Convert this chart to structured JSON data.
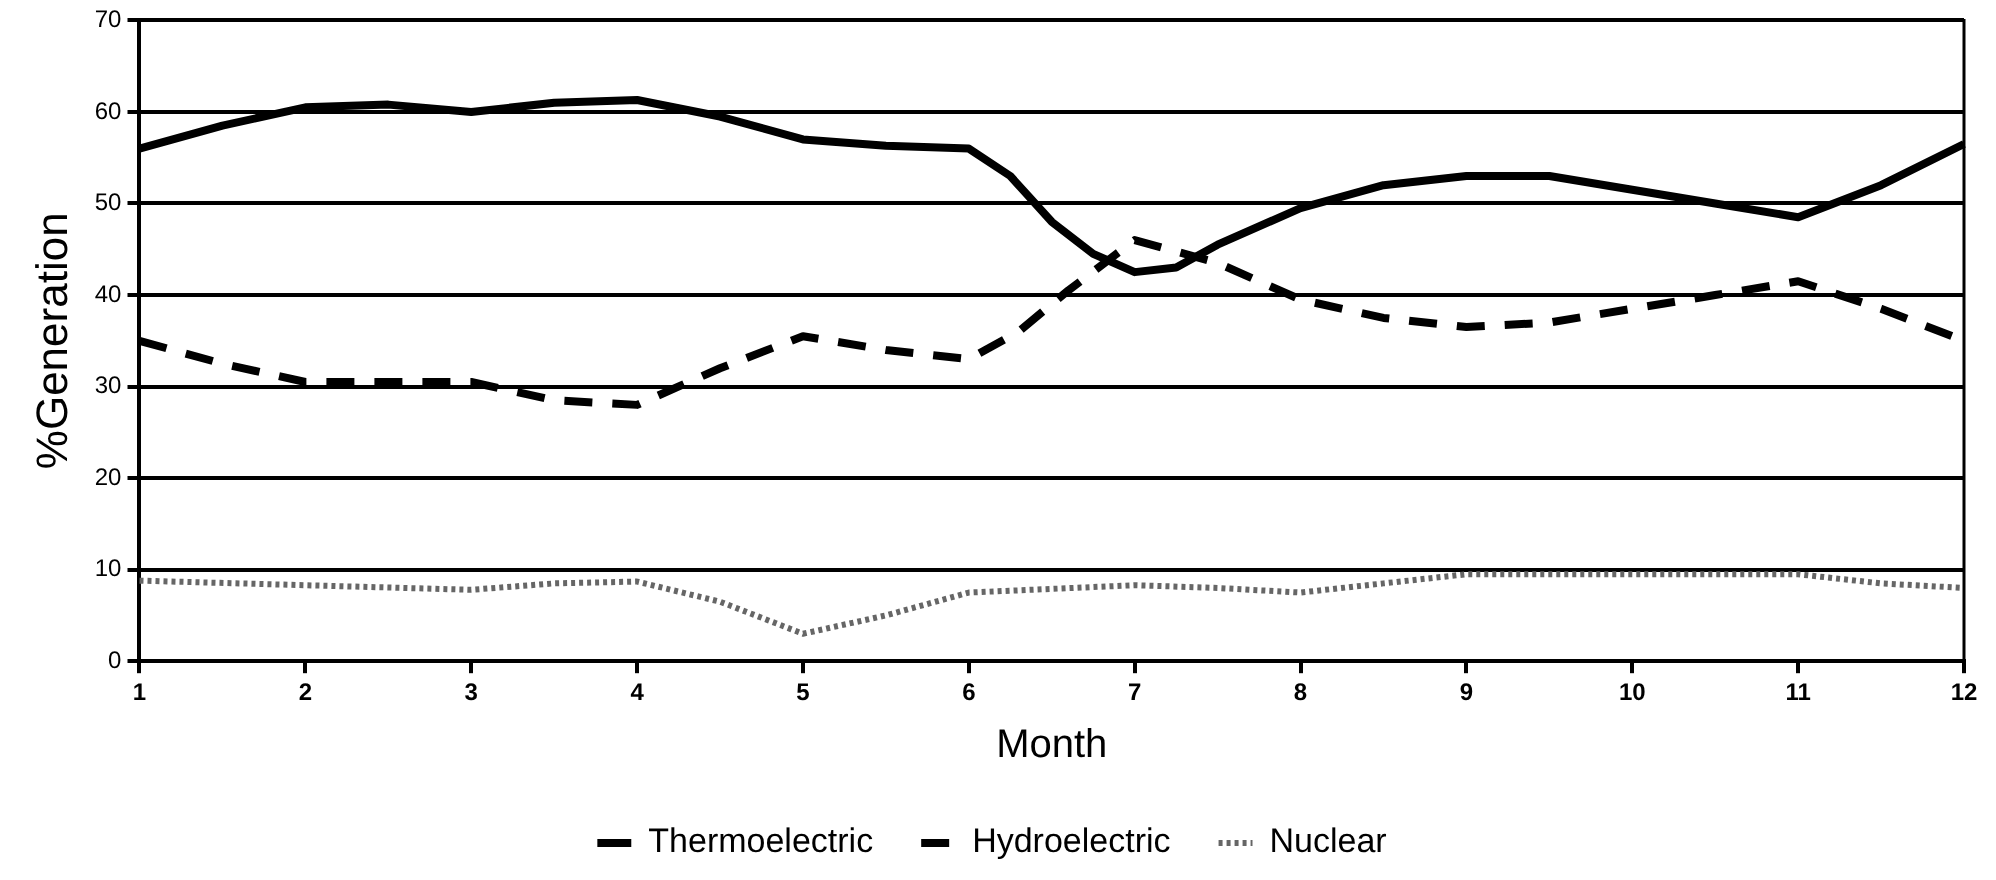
{
  "chart_data": {
    "type": "line",
    "xlabel": "Month",
    "ylabel": "%Generation",
    "xlim": [
      1,
      12
    ],
    "xticks": [
      1,
      2,
      3,
      4,
      5,
      6,
      7,
      8,
      9,
      10,
      11,
      12
    ],
    "ylim": [
      0,
      70
    ],
    "yticks": [
      0,
      10,
      20,
      30,
      40,
      50,
      60,
      70
    ],
    "grid": "y",
    "legend": "bottom",
    "marker": "none",
    "series": [
      {
        "name": "Thermoelectric",
        "color": "#000000",
        "line_style": "solid",
        "x": [
          1,
          1.5,
          2,
          2.5,
          3,
          3.5,
          4,
          4.5,
          5,
          5.5,
          6,
          6.25,
          6.5,
          6.75,
          7,
          7.25,
          7.5,
          8,
          8.5,
          9,
          9.5,
          10,
          10.5,
          11,
          11.5,
          12
        ],
        "values": [
          56,
          58.5,
          60.5,
          60.8,
          60,
          61,
          61.3,
          59.5,
          57,
          56.3,
          56,
          53,
          48,
          44.5,
          42.5,
          43,
          45.5,
          49.5,
          52,
          53,
          53,
          51.5,
          50,
          48.5,
          52,
          56.5
        ]
      },
      {
        "name": "Hydroelectric",
        "color": "#000000",
        "line_style": "dashed",
        "x": [
          1,
          1.5,
          2,
          2.5,
          3,
          3.5,
          4,
          4.5,
          5,
          5.5,
          6,
          6.3,
          6.6,
          7,
          7.5,
          8,
          8.5,
          9,
          9.5,
          10,
          10.5,
          11,
          11.5,
          12
        ],
        "values": [
          35,
          32.5,
          30.5,
          30.5,
          30.5,
          28.5,
          28,
          32,
          35.5,
          34,
          33,
          36,
          40.5,
          46,
          43.5,
          39.5,
          37.5,
          36.5,
          37,
          38.5,
          40,
          41.5,
          38.5,
          35
        ]
      },
      {
        "name": "Nuclear",
        "color": "#666666",
        "line_style": "dotted",
        "x": [
          1,
          2,
          3,
          3.5,
          4,
          4.5,
          5,
          5.5,
          6,
          7,
          7.5,
          8,
          8.5,
          9,
          10,
          11,
          11.5,
          12
        ],
        "values": [
          8.8,
          8.3,
          7.8,
          8.5,
          8.7,
          6.5,
          3,
          5,
          7.5,
          8.3,
          8,
          7.5,
          8.5,
          9.5,
          9.5,
          9.5,
          8.5,
          8
        ]
      }
    ]
  }
}
